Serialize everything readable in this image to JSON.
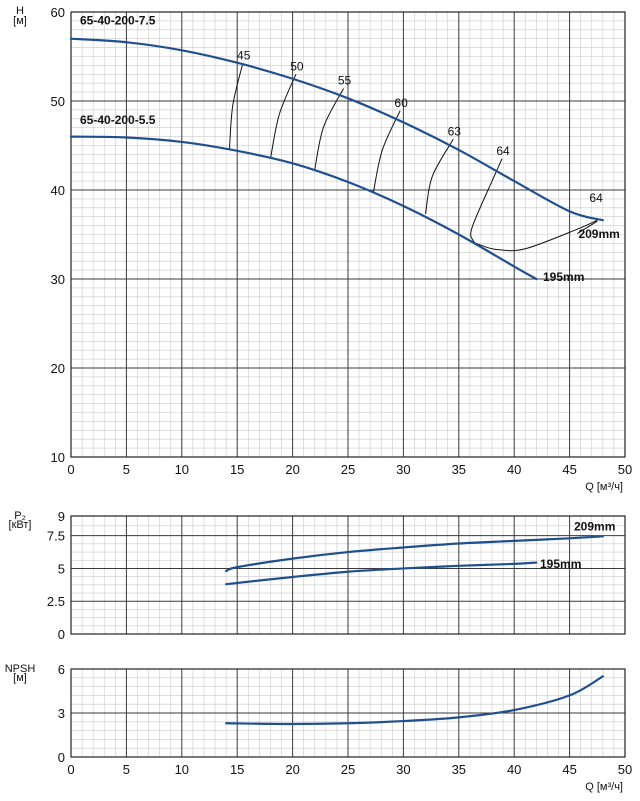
{
  "chart_data": [
    {
      "type": "line",
      "id": "head",
      "ylabel": "H",
      "yunit": "[м]",
      "xlabel": "Q [м³/ч]",
      "xlim": [
        0,
        50
      ],
      "ylim": [
        10,
        60
      ],
      "xticks": [
        0,
        5,
        10,
        15,
        20,
        25,
        30,
        35,
        40,
        45,
        50
      ],
      "yticks": [
        10,
        20,
        30,
        40,
        50,
        60
      ],
      "grid": true,
      "series": [
        {
          "name": "65-40-200-7.5",
          "size_label": "209mm",
          "color": "#1f4f8f",
          "x": [
            0,
            5,
            10,
            15,
            20,
            25,
            30,
            35,
            40,
            45,
            48
          ],
          "y": [
            57.0,
            56.6,
            55.7,
            54.3,
            52.5,
            50.3,
            47.6,
            44.5,
            41.0,
            37.6,
            36.6
          ]
        },
        {
          "name": "65-40-200-5.5",
          "size_label": "195mm",
          "color": "#1f4f8f",
          "x": [
            0,
            5,
            10,
            15,
            20,
            25,
            30,
            35,
            40,
            42
          ],
          "y": [
            46.0,
            45.9,
            45.4,
            44.4,
            43.0,
            40.9,
            38.2,
            35.0,
            31.4,
            30.0
          ]
        }
      ],
      "efficiency_iso_lines": [
        {
          "label": "45",
          "x": [
            14.3,
            14.6,
            15.5
          ],
          "y": [
            44.5,
            49.5,
            54.2
          ]
        },
        {
          "label": "50",
          "x": [
            18.0,
            18.8,
            20.3
          ],
          "y": [
            43.5,
            48.5,
            53.0
          ]
        },
        {
          "label": "55",
          "x": [
            22.0,
            22.8,
            24.6
          ],
          "y": [
            42.3,
            47.1,
            51.4
          ]
        },
        {
          "label": "60",
          "x": [
            27.3,
            28.1,
            29.7
          ],
          "y": [
            39.8,
            44.5,
            48.9
          ]
        },
        {
          "label": "63",
          "x": [
            32.0,
            32.6,
            34.5
          ],
          "y": [
            37.3,
            41.5,
            45.7
          ]
        },
        {
          "label": "64",
          "x": [
            37.0,
            36.3,
            36.2,
            38.0,
            38.9,
            41.0,
            43.5,
            45.7,
            47.5
          ],
          "y": [
            33.8,
            34.3,
            35.8,
            41.0,
            43.5,
            33.4,
            34.4,
            35.6,
            36.6
          ],
          "label_at": [
            38.9,
            43.5
          ]
        },
        {
          "label": "64",
          "label_at": [
            47.3,
            38.2
          ]
        }
      ]
    },
    {
      "type": "line",
      "id": "power",
      "ylabel": "P₂",
      "yunit": "[кВт]",
      "xlim": [
        0,
        50
      ],
      "ylim": [
        0,
        9
      ],
      "yticks": [
        0,
        2.5,
        5,
        7.5,
        9
      ],
      "ytick_labels": [
        "0",
        "2.5",
        "5",
        "7.5",
        "9"
      ],
      "grid": true,
      "series": [
        {
          "name": "209mm",
          "color": "#1f4f8f",
          "x": [
            14,
            15,
            20,
            25,
            30,
            35,
            40,
            45,
            48
          ],
          "y": [
            4.8,
            5.1,
            5.75,
            6.25,
            6.6,
            6.9,
            7.1,
            7.3,
            7.45
          ]
        },
        {
          "name": "195mm",
          "color": "#1f4f8f",
          "x": [
            14,
            20,
            25,
            30,
            35,
            40,
            42
          ],
          "y": [
            3.8,
            4.35,
            4.75,
            5.0,
            5.2,
            5.35,
            5.45
          ]
        }
      ]
    },
    {
      "type": "line",
      "id": "npsh",
      "ylabel": "NPSH",
      "yunit": "[м]",
      "xlabel": "Q [м³/ч]",
      "xlim": [
        0,
        50
      ],
      "ylim": [
        0,
        6
      ],
      "xticks": [
        0,
        5,
        10,
        15,
        20,
        25,
        30,
        35,
        40,
        45,
        50
      ],
      "yticks": [
        0,
        3,
        6
      ],
      "grid": true,
      "series": [
        {
          "name": "",
          "color": "#1f4f8f",
          "x": [
            14,
            20,
            25,
            30,
            35,
            40,
            45,
            48
          ],
          "y": [
            2.3,
            2.25,
            2.3,
            2.45,
            2.7,
            3.2,
            4.2,
            5.5
          ]
        }
      ]
    }
  ]
}
